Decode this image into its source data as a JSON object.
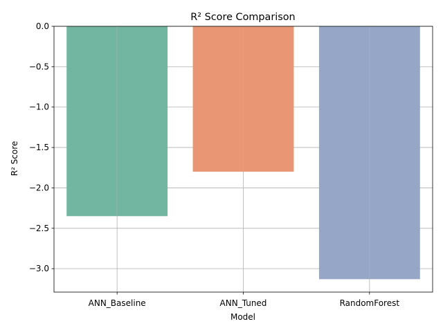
{
  "chart_data": {
    "type": "bar",
    "title": "R² Score Comparison",
    "xlabel": "Model",
    "ylabel": "R² Score",
    "categories": [
      "ANN_Baseline",
      "ANN_Tuned",
      "RandomForest"
    ],
    "values": [
      -2.35,
      -1.8,
      -3.13
    ],
    "colors": [
      "#72b6a1",
      "#e99675",
      "#95a6c6"
    ],
    "ylim": [
      -3.29,
      0.0
    ],
    "yticks": [
      0.0,
      -0.5,
      -1.0,
      -1.5,
      -2.0,
      -2.5,
      -3.0
    ],
    "ytick_labels": [
      "0.0",
      "−0.5",
      "−1.0",
      "−1.5",
      "−2.0",
      "−2.5",
      "−3.0"
    ],
    "grid": true,
    "grid_color": "#b0b0b0",
    "legend": "none"
  }
}
